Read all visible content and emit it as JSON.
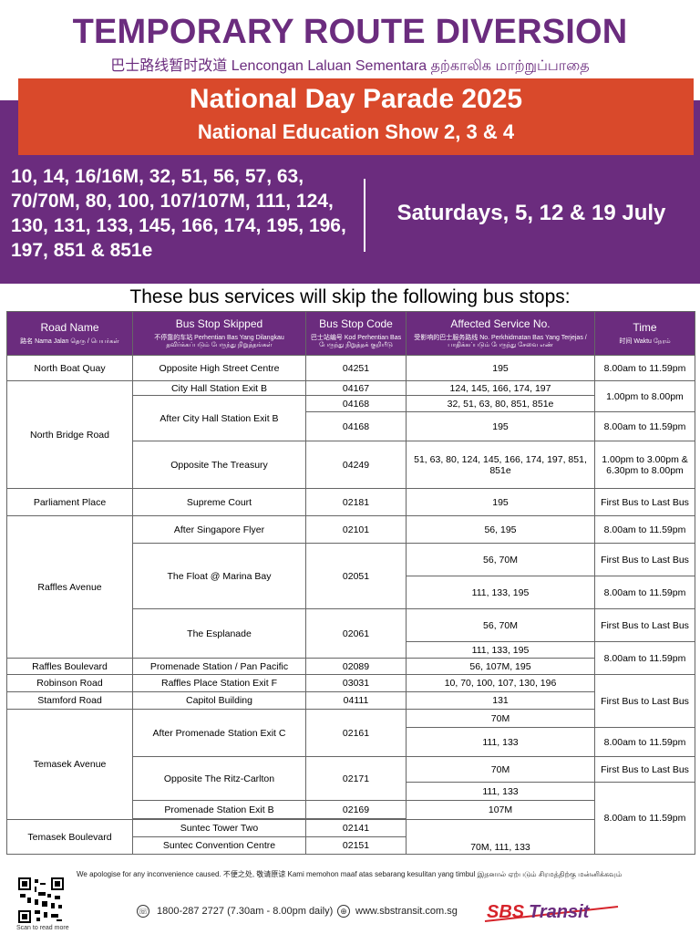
{
  "header": {
    "title": "TEMPORARY ROUTE DIVERSION",
    "subtitle": "巴士路线暂时改道  Lencongan Laluan Sementara  தற்காலிக மாற்றுப்பாதை"
  },
  "banner": {
    "event": "National Day Parade 2025",
    "show": "National Education Show 2, 3 & 4"
  },
  "services": {
    "list": "10, 14, 16/16M, 32, 51, 56, 57, 63, 70/70M, 80, 100, 107/107M, 111, 124, 130, 131, 133, 145, 166, 174, 195, 196, 197, 851 & 851e",
    "dates": "Saturdays, 5, 12 & 19 July"
  },
  "heading": "These bus services will skip the following bus stops:",
  "table": {
    "headers": {
      "road": "Road Name",
      "road_sub": "路名 Nama Jalan தெரு / பெயர்கள்",
      "stop": "Bus Stop Skipped",
      "stop_sub": "不停靠的车站 Perhentian Bas Yang Dilangkau தவிர்க்கப்படும் பேருந்து நிறுத்தங்கள்",
      "code": "Bus Stop Code",
      "code_sub": "巴士站编号 Kod Perhentian Bas பேருந்து நிறுத்தக் குறியீடு",
      "service": "Affected Service No.",
      "service_sub": "受影响的巴士服务路线 No. Perkhidmatan Bas Yang Terjejas / பாதிக்கப்படும் பேருந்து சேவை எண்",
      "time": "Time",
      "time_sub": "时间 Waktu நேரம்"
    },
    "roads": {
      "north_boat_quay": "North Boat Quay",
      "north_bridge": "North Bridge Road",
      "parliament": "Parliament Place",
      "raffles_ave": "Raffles Avenue",
      "raffles_blvd": "Raffles Boulevard",
      "robinson": "Robinson Road",
      "stamford": "Stamford Road",
      "temasek_ave": "Temasek Avenue",
      "temasek_blvd": "Temasek Boulevard"
    },
    "stops": {
      "s1": "Opposite High Street Centre",
      "s2": "City Hall Station Exit B",
      "s3": "After City Hall Station Exit B",
      "s4": "Opposite The Treasury",
      "s5": "Supreme Court",
      "s6": "After Singapore Flyer",
      "s7": "The Float @ Marina Bay",
      "s8": "The Esplanade",
      "s9": "Promenade Station / Pan Pacific",
      "s10": "Raffles Place Station Exit F",
      "s11": "Capitol Building",
      "s12": "After Promenade Station Exit C",
      "s13": "Opposite The Ritz-Carlton",
      "s14": "Promenade Station Exit B",
      "s15": "Suntec Tower Two",
      "s16": "Suntec Convention Centre"
    },
    "codes": {
      "c1": "04251",
      "c2": "04167",
      "c3": "04168",
      "c4": "04168",
      "c5": "04249",
      "c6": "02181",
      "c7": "02101",
      "c8": "02051",
      "c9": "02061",
      "c10": "02089",
      "c11": "03031",
      "c12": "04111",
      "c13": "02161",
      "c14": "02171",
      "c15": "02169",
      "c16": "02141",
      "c17": "02151"
    },
    "services": {
      "v1": "195",
      "v2": "124, 145, 166, 174, 197",
      "v3": "32, 51, 63, 80, 851, 851e",
      "v4": "195",
      "v5": "51, 63, 80, 124, 145, 166, 174, 197, 851, 851e",
      "v6": "195",
      "v7": "56, 195",
      "v8": "56, 70M",
      "v9": "111, 133, 195",
      "v10": "56, 70M",
      "v11": "111, 133, 195",
      "v12": "56, 107M, 195",
      "v13": "10, 70, 100, 107, 130, 196",
      "v14": "131",
      "v15": "70M",
      "v16": "111, 133",
      "v17": "70M",
      "v18": "111, 133",
      "v19": "107M",
      "v20": "70M, 111, 133"
    },
    "times": {
      "t_8_1159": "8.00am to 11.59pm",
      "t_1_8": "1.00pm to 8.00pm",
      "t_treasury": "1.00pm to 3.00pm & 6.30pm to 8.00pm",
      "t_first_last": "First Bus to Last Bus"
    }
  },
  "footer": {
    "apology": "We apologise for any inconvenience caused. 不便之处, 敬请原谅 Kami memohon maaf atas sebarang kesulitan yang timbul இதனால் ஏற்படும் சிரமத்திற்கு மன்னிக்கவும்",
    "scan": "Scan to read more",
    "phone": "1800-287 2727 (7.30am - 8.00pm daily)",
    "website": "www.sbstransit.com.sg",
    "logo_text": "SBS Transit",
    "colors": {
      "purple": "#6b2c7e",
      "orange": "#d9492b",
      "logo_red": "#d6232a"
    }
  }
}
